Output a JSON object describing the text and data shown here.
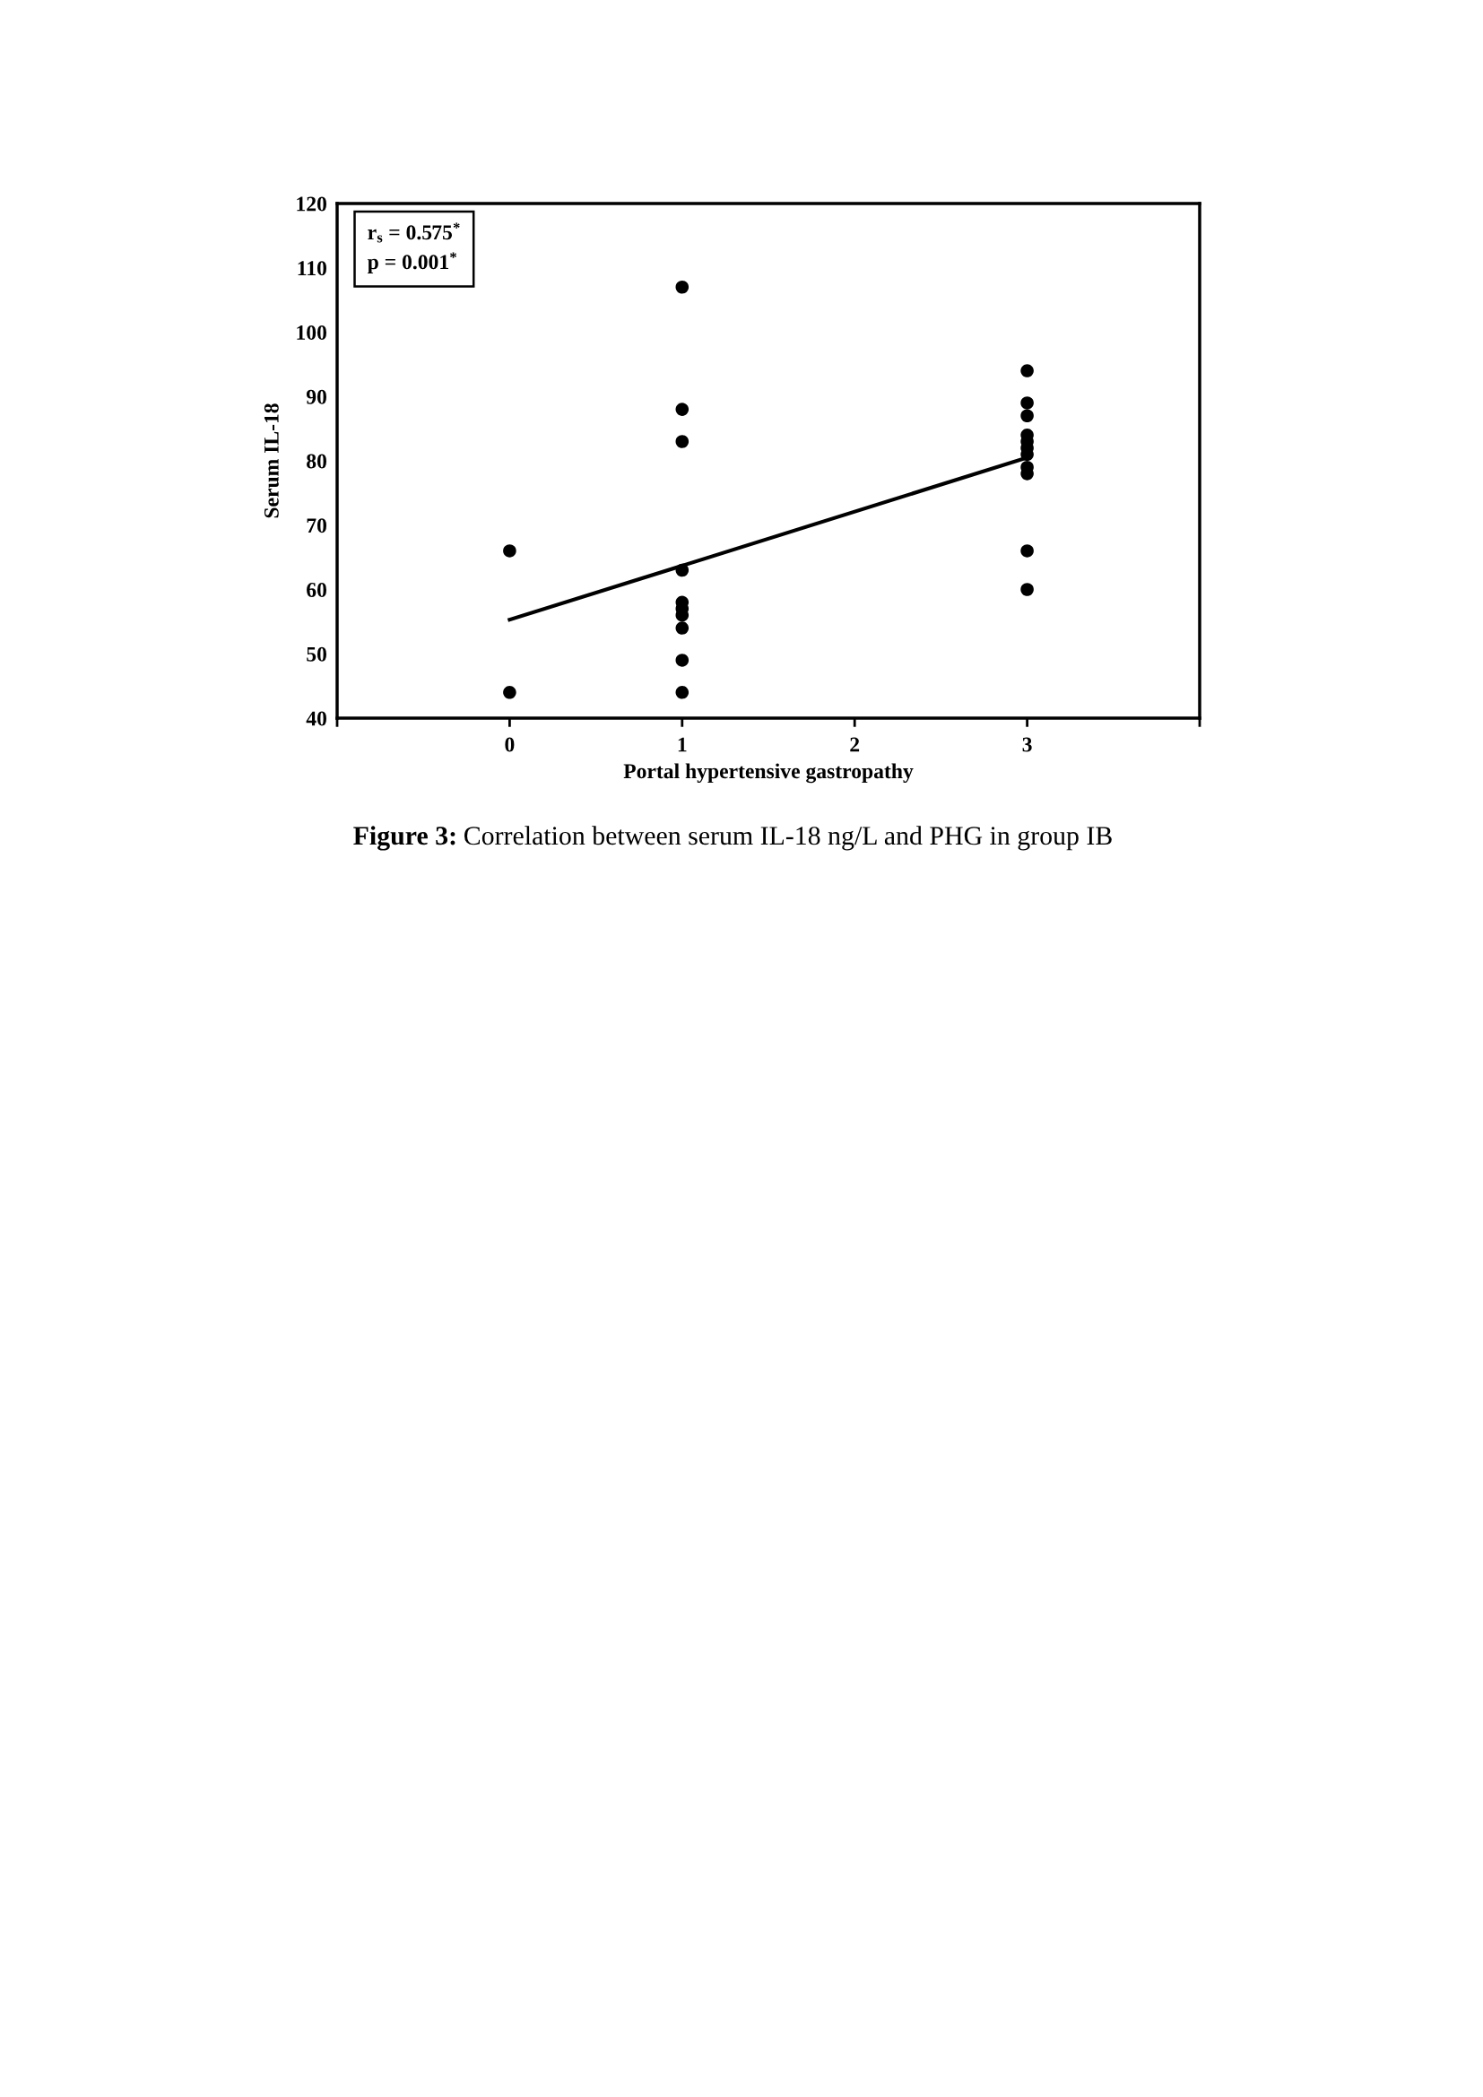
{
  "chart_data": {
    "type": "scatter",
    "xlabel": "Portal hypertensive gastropathy",
    "ylabel": "Serum IL-18",
    "xlim": [
      -1,
      4
    ],
    "xticks": [
      {
        "value": -1,
        "label": null
      },
      0,
      1,
      2,
      3,
      {
        "value": 4,
        "label": null
      }
    ],
    "ylim": [
      40,
      120
    ],
    "yticks": [
      40,
      50,
      60,
      70,
      80,
      90,
      100,
      110,
      120
    ],
    "grid": false,
    "legend": false,
    "marker": "circle",
    "series": [
      {
        "color": "#000000",
        "x": [
          0,
          0,
          1,
          1,
          1,
          1,
          1,
          1,
          1,
          1,
          1,
          1,
          3,
          3,
          3,
          3,
          3,
          3,
          3,
          3,
          3,
          3,
          3
        ],
        "values": [
          66,
          44,
          107,
          88,
          83,
          63,
          58,
          57,
          56,
          54,
          49,
          44,
          94,
          89,
          87,
          84,
          83,
          82,
          81,
          79,
          78,
          66,
          60
        ]
      },
      {
        "type": "line",
        "color": "#000000",
        "x": [
          0,
          3
        ],
        "values": [
          55.3,
          80.5
        ],
        "marker": "none",
        "line_style": "solid"
      }
    ],
    "annotations": [
      "r$_{s}$ = 0.575$^{*}$\np = 0.001$^{*}$",
      "Figure 3:",
      "Correlation between serum IL-18 ng/L and PHG in group IB"
    ]
  }
}
